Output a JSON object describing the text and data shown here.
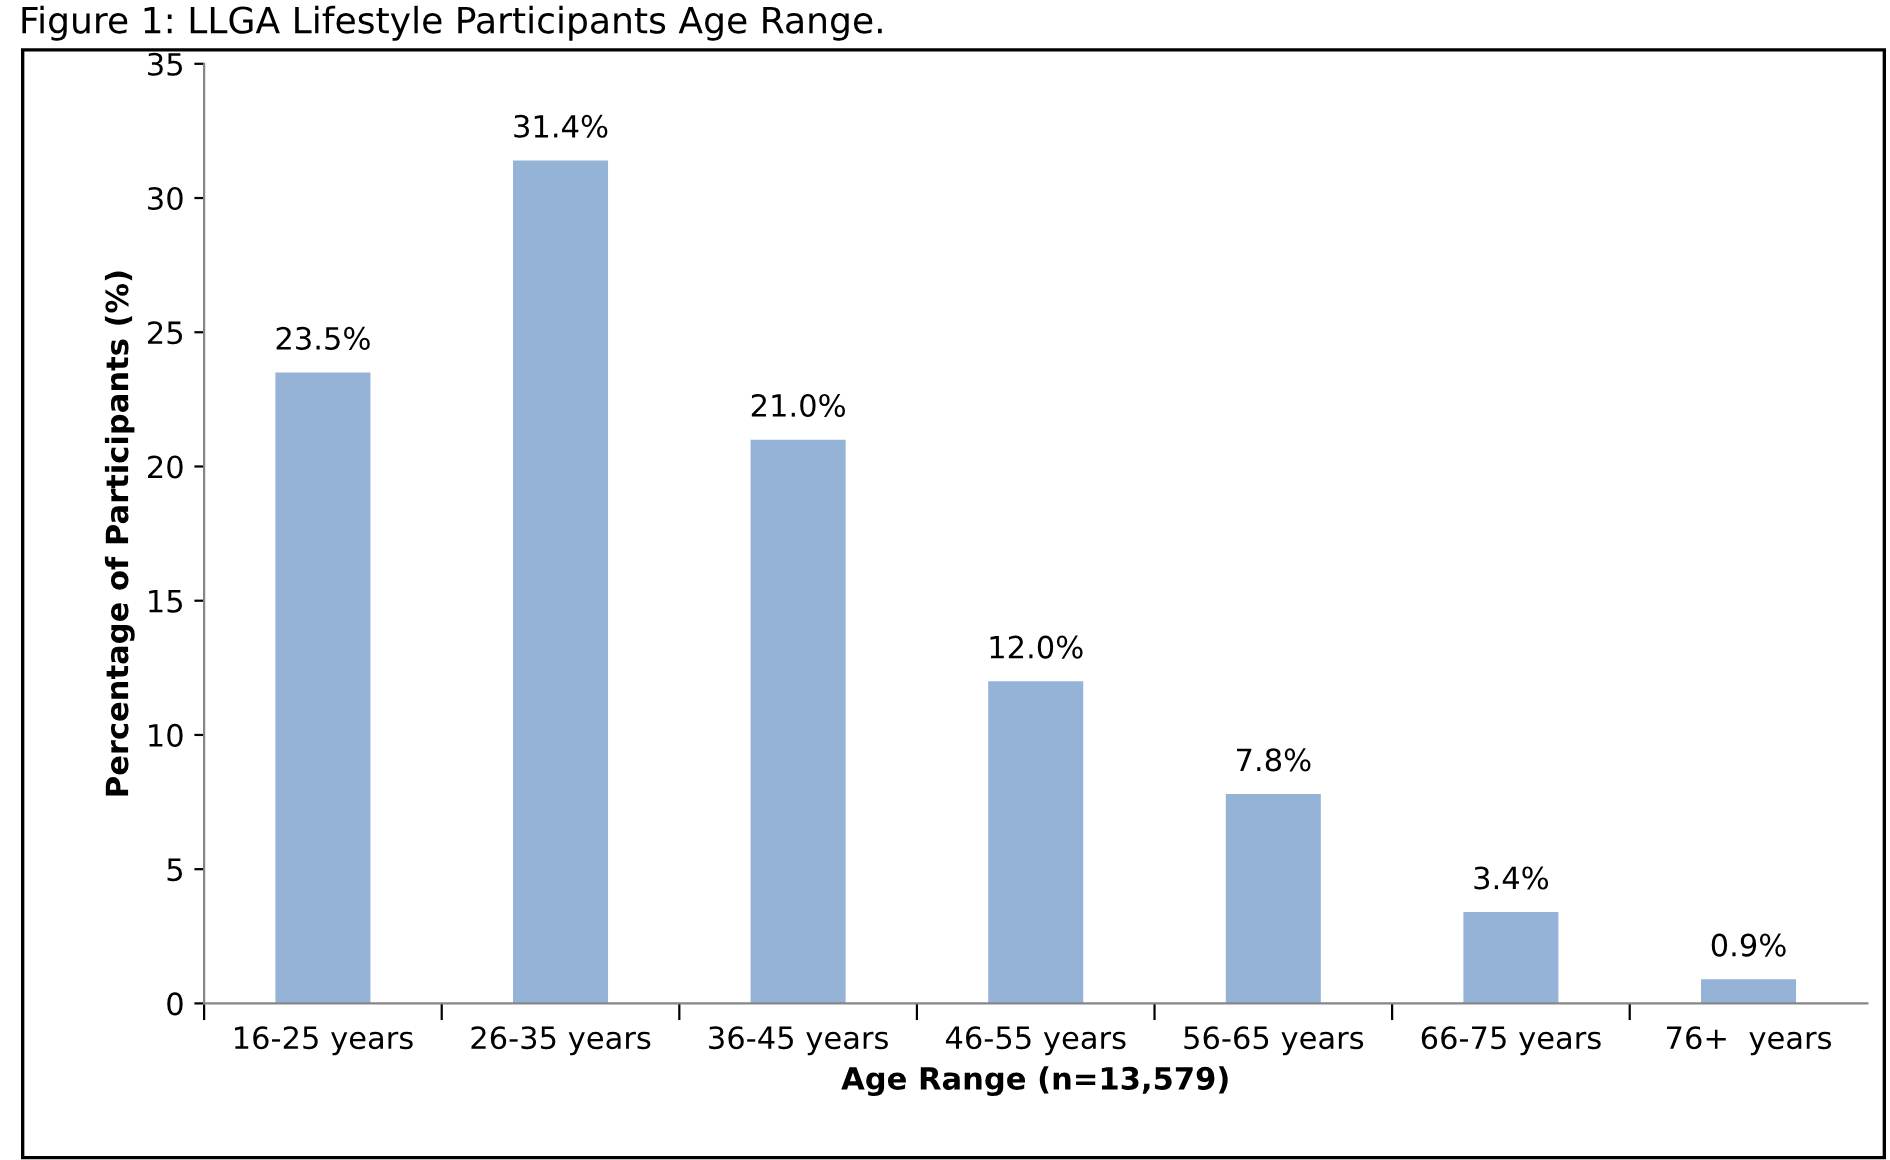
{
  "chart_data": {
    "type": "bar",
    "title": "Figure 1: LLGA Lifestyle Participants Age Range.",
    "xlabel": "Age Range (n=13,579)",
    "ylabel": "Percentage of Participants (%)",
    "categories": [
      "16-25 years",
      "26-35 years",
      "36-45 years",
      "46-55 years",
      "56-65 years",
      "66-75 years",
      "76+  years"
    ],
    "values": [
      23.5,
      31.4,
      21.0,
      12.0,
      7.8,
      3.4,
      0.9
    ],
    "value_labels": [
      "23.5%",
      "31.4%",
      "21.0%",
      "12.0%",
      "7.8%",
      "3.4%",
      "0.9%"
    ],
    "color": "#95b3d7",
    "ylim": [
      0,
      35
    ],
    "yticks": [
      0,
      5,
      10,
      15,
      20,
      25,
      30,
      35
    ],
    "grid": false,
    "legend": false
  }
}
